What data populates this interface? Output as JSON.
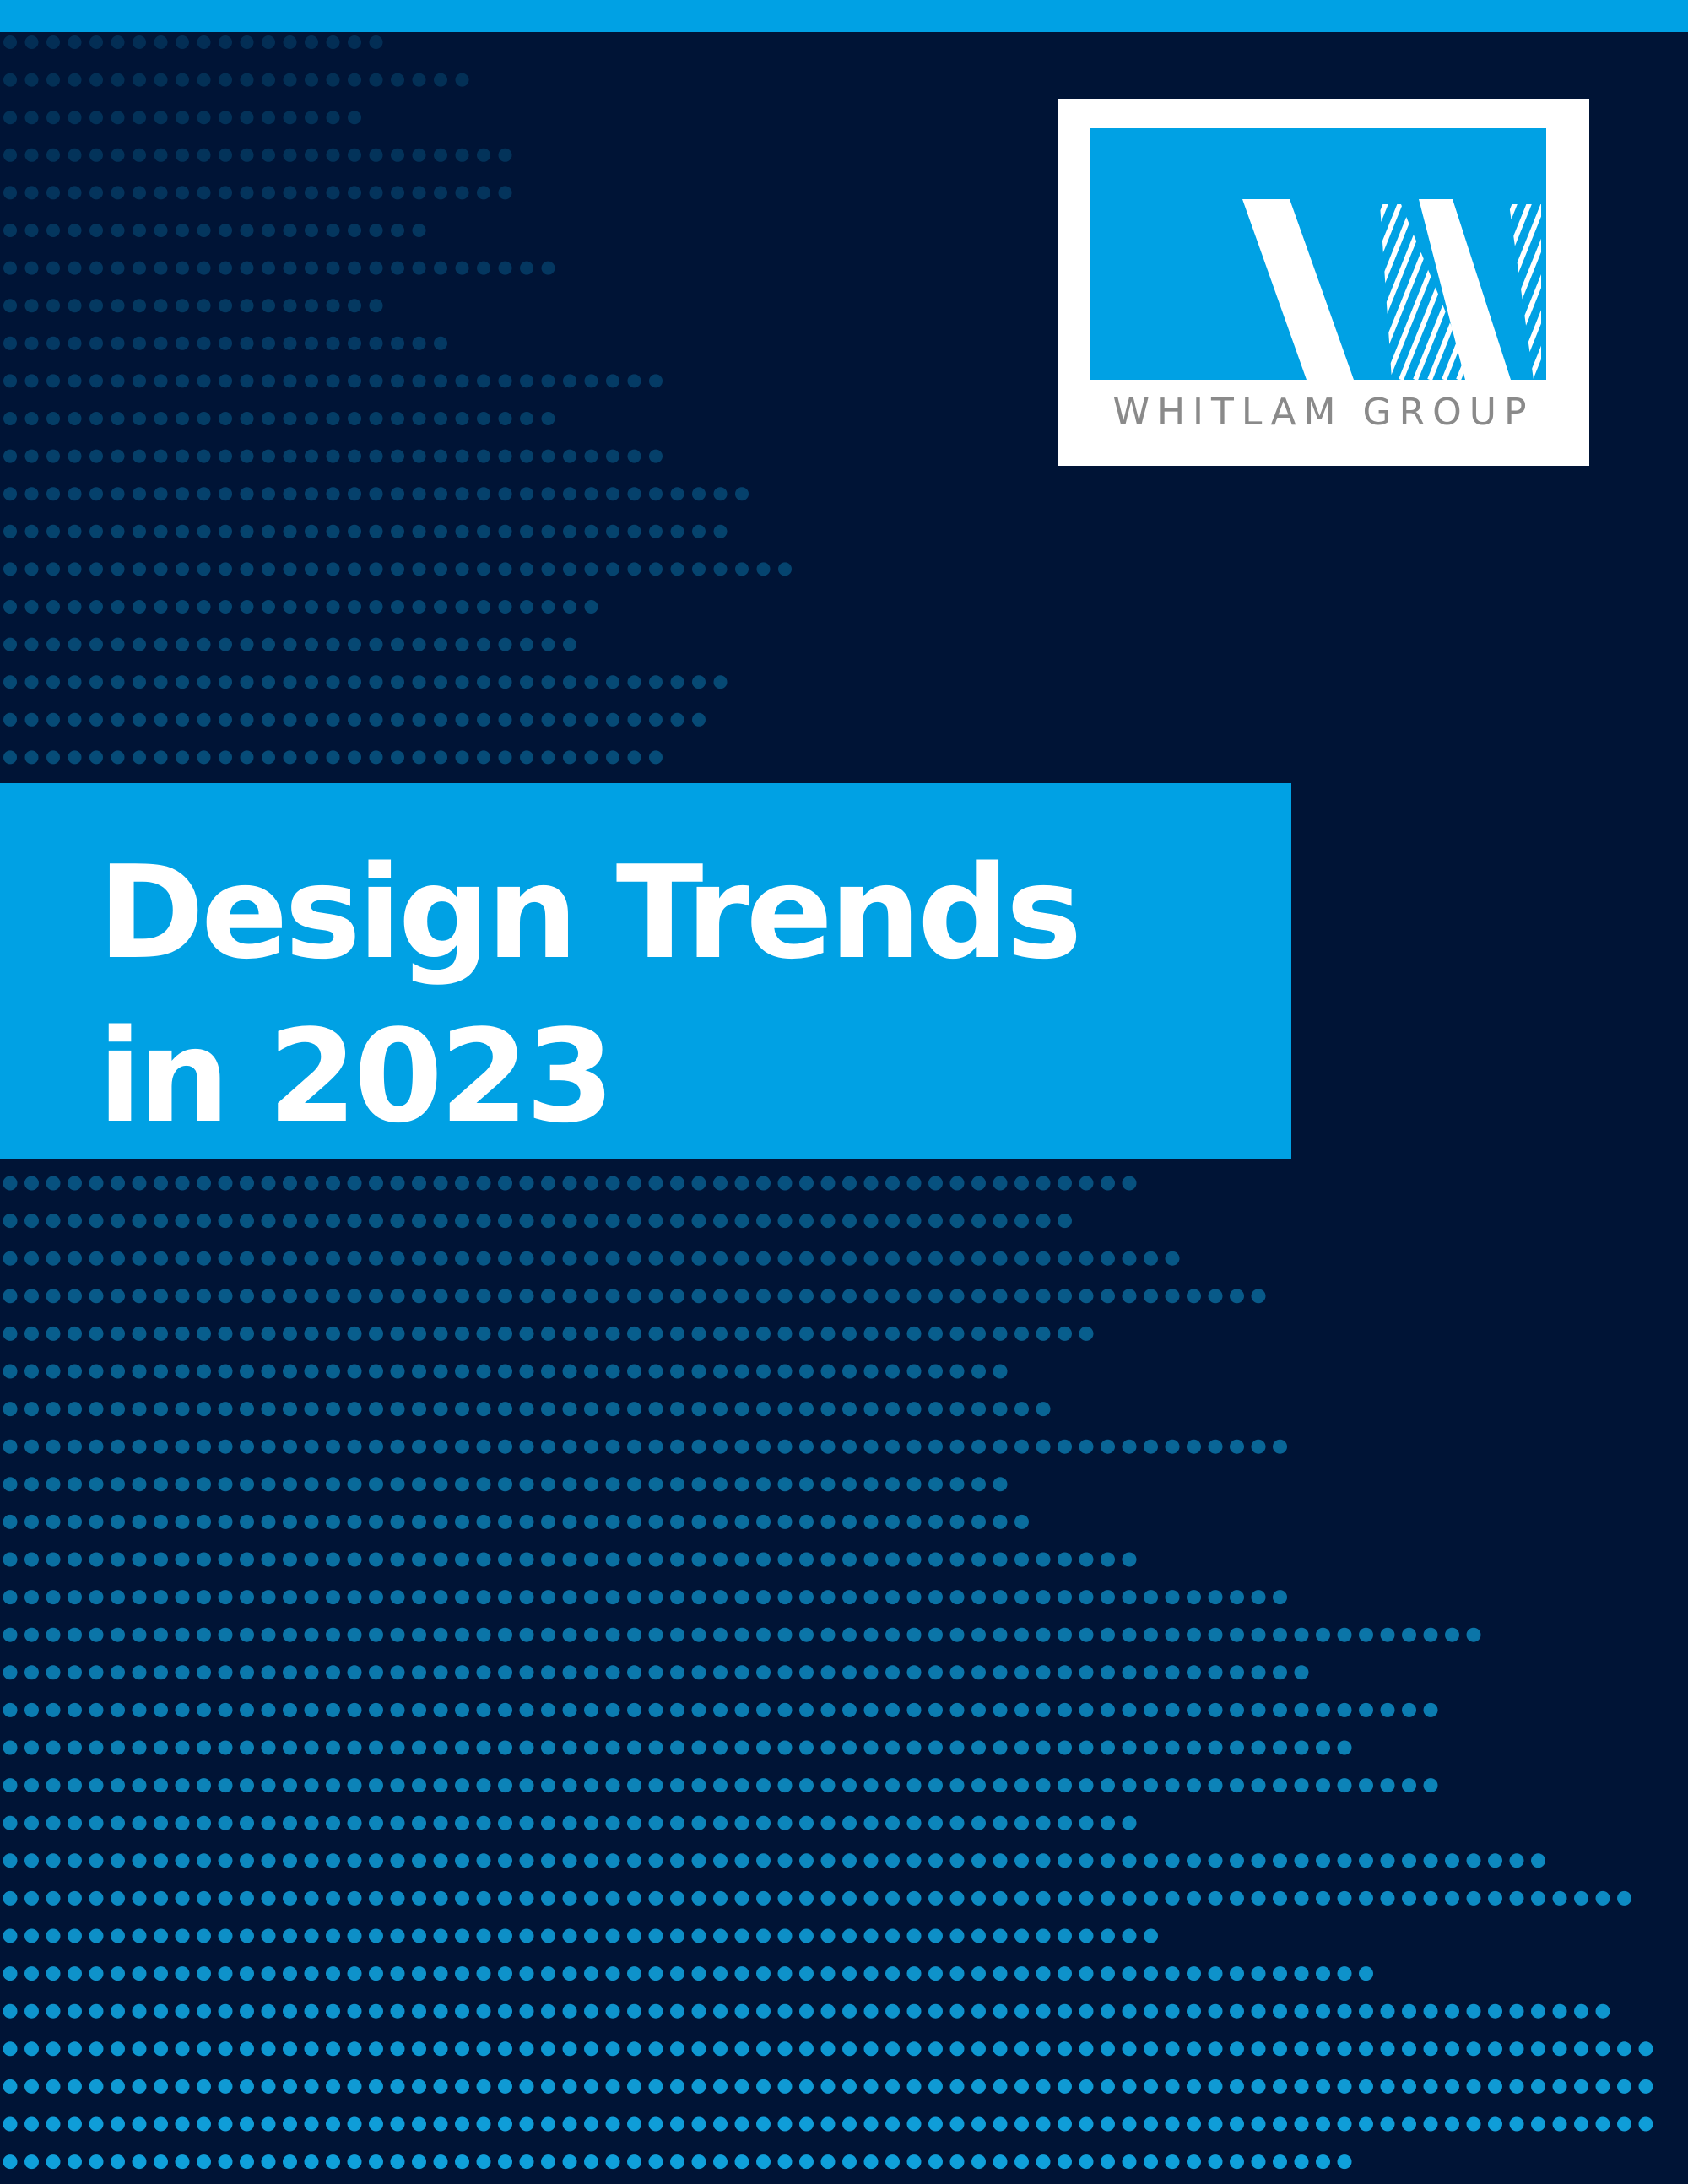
{
  "colors": {
    "background": "#001436",
    "accent": "#00a1e4",
    "dots": "#10a8e4",
    "title_text": "#ffffff",
    "logo_card": "#ffffff",
    "wordmark": "#8a8a8a"
  },
  "logo": {
    "wordmark": "WHITLAM GROUP",
    "icon": "whitlam-w-monogram-icon"
  },
  "cover": {
    "title_line_1": "Design Trends",
    "title_line_2": "in 2023"
  }
}
